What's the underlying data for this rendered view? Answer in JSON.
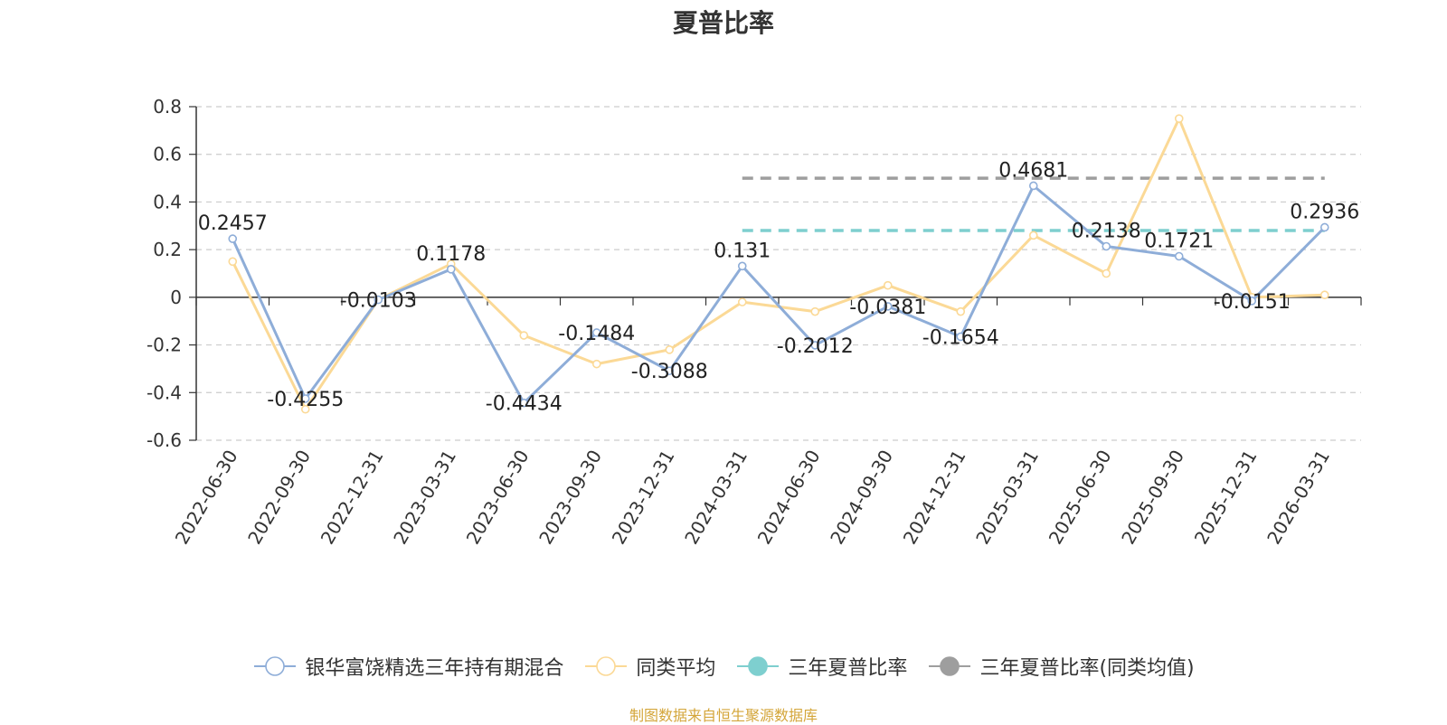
{
  "chart_data": {
    "type": "line",
    "title": "夏普比率",
    "categories": [
      "2022-06-30",
      "2022-09-30",
      "2022-12-31",
      "2023-03-31",
      "2023-06-30",
      "2023-09-30",
      "2023-12-31",
      "2024-03-31",
      "2024-06-30",
      "2024-09-30",
      "2024-12-31",
      "2025-03-31",
      "2025-06-30",
      "2025-09-30",
      "2025-12-31",
      "2026-03-31"
    ],
    "ylim": [
      -0.6,
      0.8
    ],
    "yticks": [
      0.8,
      0.6,
      0.4,
      0.2,
      0,
      -0.2,
      -0.4,
      -0.6
    ],
    "ytick_labels": [
      "0.8",
      "0.6",
      "0.4",
      "0.2",
      "0",
      "-0.2",
      "-0.4",
      "-0.6"
    ],
    "grid": true,
    "legend_position": "bottom",
    "series": [
      {
        "name": "银华富饶精选三年持有期混合",
        "color": "#8eadd8",
        "values": [
          0.2457,
          -0.4255,
          -0.0103,
          0.1178,
          -0.4434,
          -0.1484,
          -0.3088,
          0.131,
          -0.2012,
          -0.0381,
          -0.1654,
          0.4681,
          0.2138,
          0.1721,
          -0.0151,
          0.2936
        ],
        "labels": [
          "0.2457",
          "-0.4255",
          "-0.0103",
          "0.1178",
          "-0.4434",
          "-0.1484",
          "-0.3088",
          "0.131",
          "-0.2012",
          "-0.0381",
          "-0.1654",
          "0.4681",
          "0.2138",
          "0.1721",
          "-0.0151",
          "0.2936"
        ]
      },
      {
        "name": "同类平均",
        "color": "#fbd996",
        "values": [
          0.15,
          -0.47,
          -0.01,
          0.14,
          -0.16,
          -0.28,
          -0.22,
          -0.02,
          -0.06,
          0.05,
          -0.06,
          0.26,
          0.1,
          0.75,
          0.0,
          0.01
        ]
      }
    ],
    "reference_lines": [
      {
        "name": "三年夏普比率",
        "color": "#7ecfcf",
        "value": 0.28,
        "from": "2024-03-31",
        "to": "2026-03-31"
      },
      {
        "name": "三年夏普比率(同类均值)",
        "color": "#9e9e9e",
        "value": 0.5,
        "from": "2024-03-31",
        "to": "2026-03-31"
      }
    ]
  },
  "legend": {
    "items": [
      {
        "label": "银华富饶精选三年持有期混合",
        "color": "#8eadd8",
        "marker": "hollow"
      },
      {
        "label": "同类平均",
        "color": "#fbd996",
        "marker": "hollow"
      },
      {
        "label": "三年夏普比率",
        "color": "#7ecfcf",
        "marker": "filled"
      },
      {
        "label": "三年夏普比率(同类均值)",
        "color": "#9e9e9e",
        "marker": "filled"
      }
    ]
  },
  "source_note": "制图数据来自恒生聚源数据库"
}
